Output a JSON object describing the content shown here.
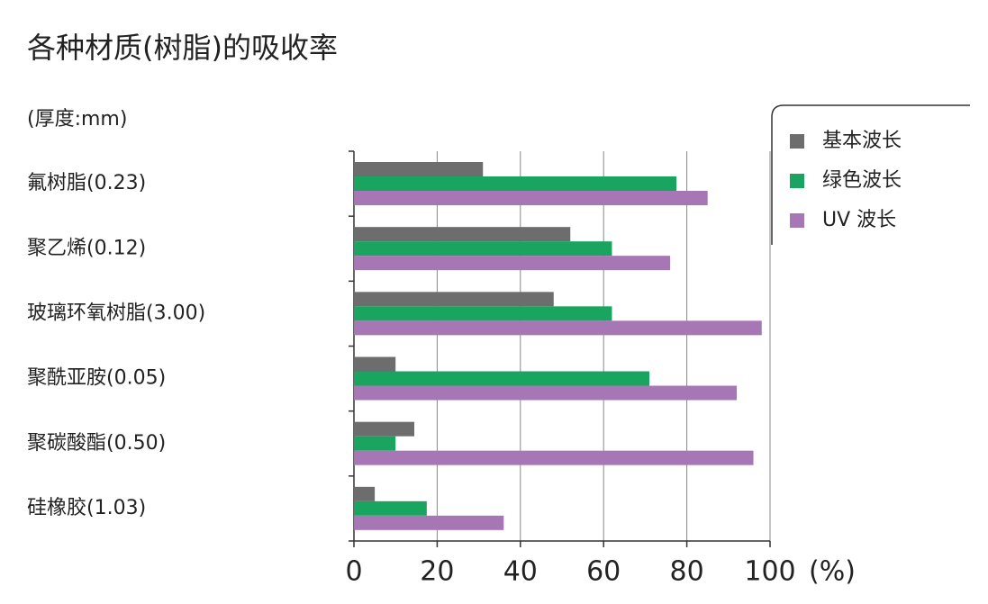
{
  "chart_data": {
    "type": "bar",
    "orientation": "horizontal",
    "title": "各种材质(树脂)的吸收率",
    "subtitle": "(厚度:mm)",
    "x_label": "(%)",
    "categories": [
      "氟树脂(0.23)",
      "聚乙烯(0.12)",
      "玻璃环氧树脂(3.00)",
      "聚酰亚胺(0.05)",
      "聚碳酸酯(0.50)",
      "硅橡胶(1.03)"
    ],
    "series": [
      {
        "name": "基本波长",
        "color": "#6d6d6d",
        "values": [
          31,
          52,
          48,
          10,
          14.5,
          5
        ]
      },
      {
        "name": "绿色波长",
        "color": "#19a55f",
        "values": [
          77.5,
          62,
          62,
          71,
          10,
          17.5
        ]
      },
      {
        "name": "UV 波长",
        "color": "#a777b5",
        "values": [
          85,
          76,
          98,
          92,
          96,
          36
        ]
      }
    ],
    "xlim": [
      0,
      100
    ],
    "xticks": [
      0,
      20,
      40,
      60,
      80,
      100
    ],
    "grid": true,
    "legend": "upper right"
  }
}
